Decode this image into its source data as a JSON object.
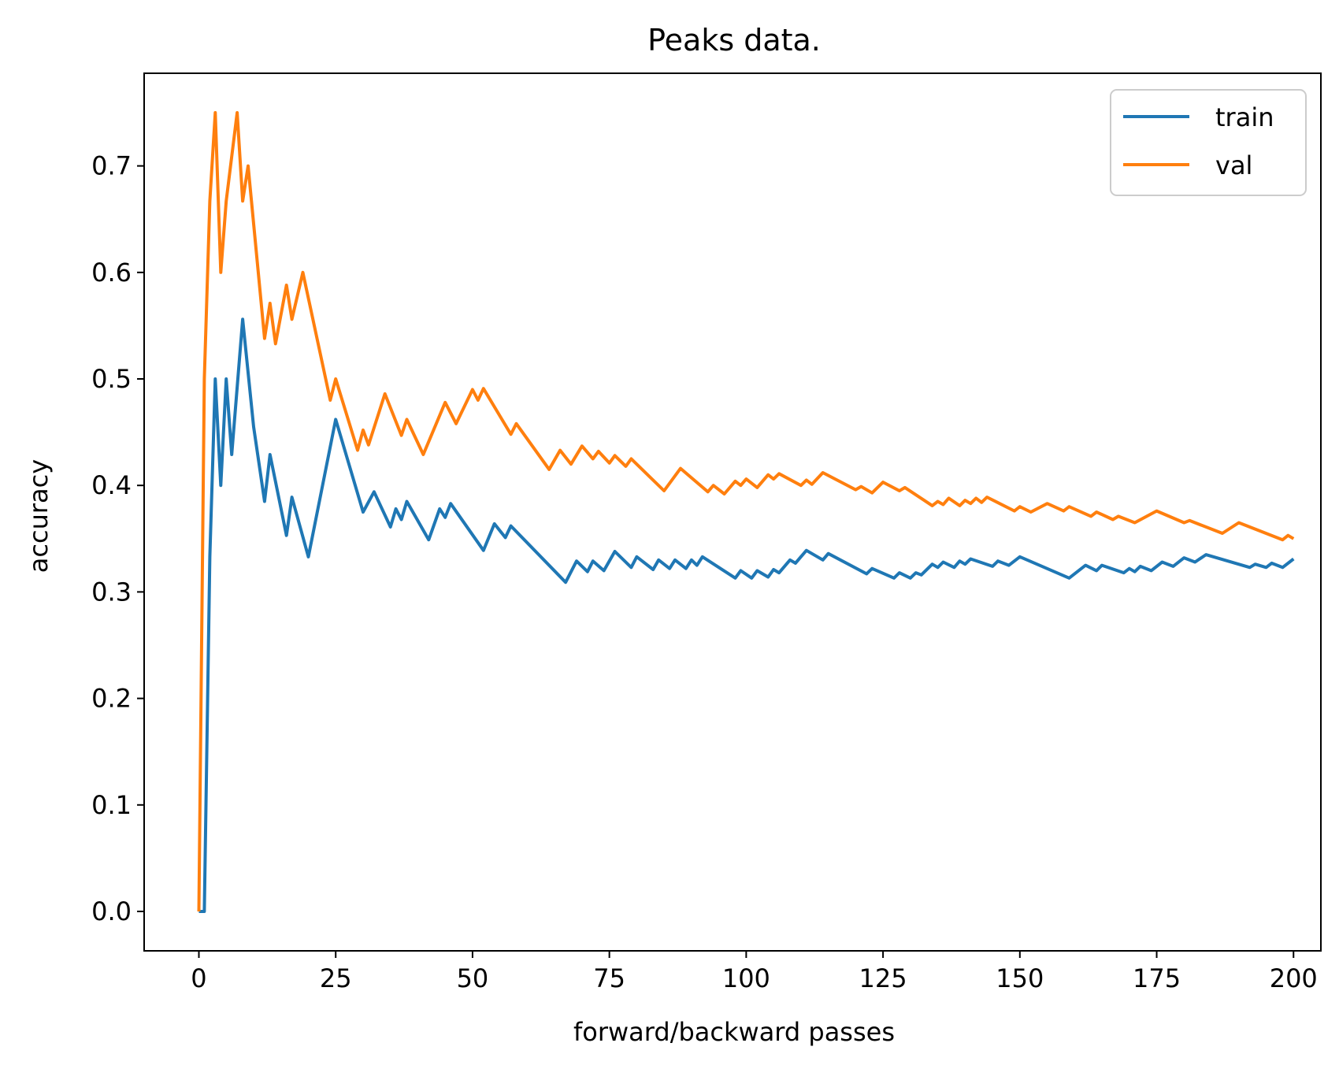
{
  "chart_data": {
    "type": "line",
    "title": "Peaks data.",
    "xlabel": "forward/backward passes",
    "ylabel": "accuracy",
    "xlim": [
      -10,
      205
    ],
    "ylim": [
      -0.037,
      0.787
    ],
    "xticks": [
      0,
      25,
      50,
      75,
      100,
      125,
      150,
      175,
      200
    ],
    "yticks": [
      0.0,
      0.1,
      0.2,
      0.3,
      0.4,
      0.5,
      0.6,
      0.7
    ],
    "xtick_labels": [
      "0",
      "25",
      "50",
      "75",
      "100",
      "125",
      "150",
      "175",
      "200"
    ],
    "ytick_labels": [
      "0.0",
      "0.1",
      "0.2",
      "0.3",
      "0.4",
      "0.5",
      "0.6",
      "0.7"
    ],
    "grid": false,
    "legend": {
      "position": "top-right",
      "entries": [
        "train",
        "val"
      ]
    },
    "series": [
      {
        "name": "train",
        "color": "#1f77b4",
        "points": [
          [
            0,
            0
          ],
          [
            1,
            0
          ],
          [
            2,
            0.333
          ],
          [
            3,
            0.5
          ],
          [
            4,
            0.4
          ],
          [
            5,
            0.5
          ],
          [
            6,
            0.429
          ],
          [
            8,
            0.556
          ],
          [
            10,
            0.455
          ],
          [
            12,
            0.385
          ],
          [
            13,
            0.429
          ],
          [
            16,
            0.353
          ],
          [
            17,
            0.389
          ],
          [
            20,
            0.333
          ],
          [
            25,
            0.462
          ],
          [
            30,
            0.375
          ],
          [
            32,
            0.394
          ],
          [
            35,
            0.361
          ],
          [
            36,
            0.378
          ],
          [
            37,
            0.368
          ],
          [
            38,
            0.385
          ],
          [
            42,
            0.349
          ],
          [
            44,
            0.378
          ],
          [
            45,
            0.37
          ],
          [
            46,
            0.383
          ],
          [
            52,
            0.339
          ],
          [
            54,
            0.364
          ],
          [
            56,
            0.351
          ],
          [
            57,
            0.362
          ],
          [
            67,
            0.309
          ],
          [
            69,
            0.329
          ],
          [
            71,
            0.319
          ],
          [
            72,
            0.329
          ],
          [
            74,
            0.32
          ],
          [
            76,
            0.338
          ],
          [
            79,
            0.323
          ],
          [
            80,
            0.333
          ],
          [
            83,
            0.321
          ],
          [
            84,
            0.33
          ],
          [
            86,
            0.322
          ],
          [
            87,
            0.33
          ],
          [
            89,
            0.322
          ],
          [
            90,
            0.33
          ],
          [
            91,
            0.325
          ],
          [
            92,
            0.333
          ],
          [
            98,
            0.313
          ],
          [
            99,
            0.32
          ],
          [
            101,
            0.313
          ],
          [
            102,
            0.32
          ],
          [
            104,
            0.314
          ],
          [
            105,
            0.321
          ],
          [
            106,
            0.318
          ],
          [
            108,
            0.33
          ],
          [
            109,
            0.327
          ],
          [
            111,
            0.339
          ],
          [
            114,
            0.33
          ],
          [
            115,
            0.336
          ],
          [
            122,
            0.317
          ],
          [
            123,
            0.322
          ],
          [
            127,
            0.313
          ],
          [
            128,
            0.318
          ],
          [
            130,
            0.313
          ],
          [
            131,
            0.318
          ],
          [
            132,
            0.316
          ],
          [
            134,
            0.326
          ],
          [
            135,
            0.323
          ],
          [
            136,
            0.328
          ],
          [
            138,
            0.323
          ],
          [
            139,
            0.329
          ],
          [
            140,
            0.326
          ],
          [
            141,
            0.331
          ],
          [
            145,
            0.324
          ],
          [
            146,
            0.329
          ],
          [
            148,
            0.325
          ],
          [
            150,
            0.333
          ],
          [
            159,
            0.313
          ],
          [
            162,
            0.325
          ],
          [
            164,
            0.32
          ],
          [
            165,
            0.325
          ],
          [
            169,
            0.318
          ],
          [
            170,
            0.322
          ],
          [
            171,
            0.319
          ],
          [
            172,
            0.324
          ],
          [
            174,
            0.32
          ],
          [
            176,
            0.328
          ],
          [
            178,
            0.324
          ],
          [
            180,
            0.332
          ],
          [
            182,
            0.328
          ],
          [
            184,
            0.335
          ],
          [
            192,
            0.323
          ],
          [
            193,
            0.326
          ],
          [
            195,
            0.323
          ],
          [
            196,
            0.327
          ],
          [
            198,
            0.323
          ],
          [
            200,
            0.331
          ]
        ]
      },
      {
        "name": "val",
        "color": "#ff7f0e",
        "points": [
          [
            0,
            0
          ],
          [
            1,
            0.5
          ],
          [
            2,
            0.667
          ],
          [
            3,
            0.75
          ],
          [
            4,
            0.6
          ],
          [
            5,
            0.667
          ],
          [
            7,
            0.75
          ],
          [
            8,
            0.667
          ],
          [
            9,
            0.7
          ],
          [
            12,
            0.538
          ],
          [
            13,
            0.571
          ],
          [
            14,
            0.533
          ],
          [
            16,
            0.588
          ],
          [
            17,
            0.556
          ],
          [
            19,
            0.6
          ],
          [
            24,
            0.48
          ],
          [
            25,
            0.5
          ],
          [
            29,
            0.433
          ],
          [
            30,
            0.452
          ],
          [
            31,
            0.438
          ],
          [
            34,
            0.486
          ],
          [
            37,
            0.447
          ],
          [
            38,
            0.462
          ],
          [
            41,
            0.429
          ],
          [
            45,
            0.478
          ],
          [
            47,
            0.458
          ],
          [
            50,
            0.49
          ],
          [
            51,
            0.48
          ],
          [
            52,
            0.491
          ],
          [
            57,
            0.448
          ],
          [
            58,
            0.458
          ],
          [
            64,
            0.415
          ],
          [
            66,
            0.433
          ],
          [
            68,
            0.42
          ],
          [
            70,
            0.437
          ],
          [
            72,
            0.425
          ],
          [
            73,
            0.432
          ],
          [
            75,
            0.421
          ],
          [
            76,
            0.428
          ],
          [
            78,
            0.418
          ],
          [
            79,
            0.425
          ],
          [
            85,
            0.395
          ],
          [
            88,
            0.416
          ],
          [
            93,
            0.394
          ],
          [
            94,
            0.4
          ],
          [
            96,
            0.392
          ],
          [
            98,
            0.404
          ],
          [
            99,
            0.4
          ],
          [
            100,
            0.406
          ],
          [
            102,
            0.398
          ],
          [
            104,
            0.41
          ],
          [
            105,
            0.406
          ],
          [
            106,
            0.411
          ],
          [
            110,
            0.4
          ],
          [
            111,
            0.405
          ],
          [
            112,
            0.401
          ],
          [
            114,
            0.412
          ],
          [
            120,
            0.396
          ],
          [
            121,
            0.399
          ],
          [
            123,
            0.393
          ],
          [
            125,
            0.403
          ],
          [
            128,
            0.395
          ],
          [
            129,
            0.398
          ],
          [
            134,
            0.381
          ],
          [
            135,
            0.385
          ],
          [
            136,
            0.382
          ],
          [
            137,
            0.388
          ],
          [
            139,
            0.381
          ],
          [
            140,
            0.386
          ],
          [
            141,
            0.383
          ],
          [
            142,
            0.388
          ],
          [
            143,
            0.384
          ],
          [
            144,
            0.389
          ],
          [
            149,
            0.376
          ],
          [
            150,
            0.38
          ],
          [
            152,
            0.375
          ],
          [
            155,
            0.383
          ],
          [
            158,
            0.376
          ],
          [
            159,
            0.38
          ],
          [
            163,
            0.371
          ],
          [
            164,
            0.375
          ],
          [
            167,
            0.368
          ],
          [
            168,
            0.371
          ],
          [
            171,
            0.365
          ],
          [
            175,
            0.376
          ],
          [
            180,
            0.365
          ],
          [
            181,
            0.367
          ],
          [
            187,
            0.355
          ],
          [
            190,
            0.365
          ],
          [
            198,
            0.349
          ],
          [
            199,
            0.353
          ],
          [
            200,
            0.35
          ]
        ]
      }
    ]
  }
}
